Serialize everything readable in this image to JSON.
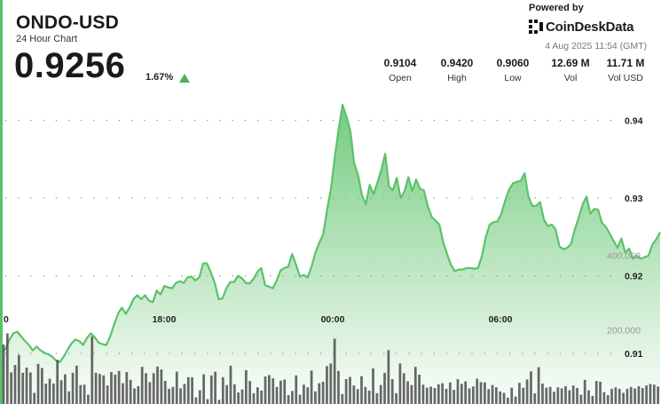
{
  "header": {
    "symbol": "ONDO-USD",
    "subtitle": "24 Hour Chart",
    "price": "0.9256",
    "change": "1.67%",
    "change_direction": "up"
  },
  "branding": {
    "powered_by": "Powered by",
    "name": "CoinDeskData",
    "icon": "coindesk-logo-icon"
  },
  "timestamp": "4 Aug 2025 11:54 (GMT)",
  "stats": [
    {
      "value": "0.9104",
      "label": "Open"
    },
    {
      "value": "0.9420",
      "label": "High"
    },
    {
      "value": "0.9060",
      "label": "Low"
    },
    {
      "value": "12.69 M",
      "label": "Vol"
    },
    {
      "value": "11.71 M",
      "label": "Vol USD"
    }
  ],
  "colors": {
    "line": "#5cc26a",
    "area_top": "#5cc26a",
    "volume_bar": "#4d4d4d",
    "up_arrow": "#4caf5a"
  },
  "chart_data": [
    {
      "type": "area",
      "x_ticks": [
        "0",
        "18:00",
        "00:00",
        "06:00"
      ],
      "y_ticks": [
        "0.94",
        "0.93",
        "0.92",
        "0.91"
      ],
      "ylim": [
        0.9035,
        0.9443
      ],
      "grid": "dotted-horizontal",
      "values": [
        0.9102,
        0.9106,
        0.9118,
        0.9126,
        0.9128,
        0.9122,
        0.9116,
        0.9111,
        0.9104,
        0.9109,
        0.9104,
        0.9101,
        0.9099,
        0.9096,
        0.9091,
        0.9089,
        0.9096,
        0.9105,
        0.9113,
        0.9118,
        0.9116,
        0.9111,
        0.912,
        0.9126,
        0.9121,
        0.9114,
        0.9112,
        0.9111,
        0.9122,
        0.9137,
        0.9151,
        0.9159,
        0.9151,
        0.9159,
        0.917,
        0.9175,
        0.917,
        0.9175,
        0.9168,
        0.9166,
        0.9181,
        0.9176,
        0.9187,
        0.9185,
        0.9184,
        0.9191,
        0.9193,
        0.9191,
        0.9198,
        0.9199,
        0.9194,
        0.9198,
        0.9216,
        0.9216,
        0.9204,
        0.9191,
        0.917,
        0.9171,
        0.9184,
        0.9192,
        0.9192,
        0.92,
        0.9197,
        0.9191,
        0.919,
        0.9196,
        0.9205,
        0.921,
        0.9188,
        0.9186,
        0.9184,
        0.9194,
        0.9207,
        0.921,
        0.9212,
        0.9228,
        0.9214,
        0.9199,
        0.9201,
        0.9198,
        0.9212,
        0.923,
        0.9243,
        0.9253,
        0.9285,
        0.9312,
        0.9353,
        0.9389,
        0.942,
        0.9405,
        0.9387,
        0.9345,
        0.933,
        0.9304,
        0.9292,
        0.9317,
        0.9305,
        0.932,
        0.9336,
        0.9357,
        0.9315,
        0.931,
        0.9326,
        0.93,
        0.9309,
        0.9327,
        0.9309,
        0.9324,
        0.9312,
        0.931,
        0.929,
        0.9276,
        0.9271,
        0.9266,
        0.9243,
        0.9228,
        0.9214,
        0.9206,
        0.9208,
        0.9208,
        0.921,
        0.921,
        0.9209,
        0.921,
        0.9226,
        0.925,
        0.9266,
        0.9269,
        0.927,
        0.928,
        0.9297,
        0.9311,
        0.9319,
        0.9321,
        0.9322,
        0.9332,
        0.9302,
        0.929,
        0.929,
        0.9295,
        0.9272,
        0.9264,
        0.9266,
        0.926,
        0.9238,
        0.9234,
        0.9236,
        0.9241,
        0.926,
        0.9275,
        0.9292,
        0.9302,
        0.928,
        0.9286,
        0.9285,
        0.9268,
        0.9263,
        0.9254,
        0.9245,
        0.9236,
        0.9248,
        0.923,
        0.9235,
        0.9222,
        0.9226,
        0.9222,
        0.9224,
        0.9226,
        0.924,
        0.9247,
        0.9256
      ]
    },
    {
      "type": "bar",
      "name": "Volume",
      "y_ticks": [
        "400,000",
        "200,000"
      ],
      "ylim": [
        0,
        490000
      ],
      "values": [
        160000,
        190000,
        85000,
        105000,
        132000,
        84000,
        98000,
        85000,
        30000,
        108000,
        97000,
        55000,
        68000,
        55000,
        119000,
        64000,
        80000,
        34000,
        84000,
        103000,
        51000,
        52000,
        25000,
        182000,
        84000,
        81000,
        77000,
        50000,
        86000,
        79000,
        89000,
        56000,
        86000,
        65000,
        42000,
        48000,
        100000,
        83000,
        59000,
        83000,
        101000,
        93000,
        62000,
        41000,
        46000,
        87000,
        42000,
        54000,
        72000,
        72000,
        18000,
        37000,
        80000,
        13000,
        77000,
        87000,
        11000,
        72000,
        51000,
        103000,
        53000,
        31000,
        39000,
        91000,
        62000,
        29000,
        45000,
        36000,
        74000,
        78000,
        69000,
        46000,
        63000,
        66000,
        24000,
        35000,
        77000,
        25000,
        52000,
        45000,
        90000,
        34000,
        56000,
        60000,
        102000,
        109000,
        176000,
        89000,
        27000,
        67000,
        73000,
        50000,
        40000,
        75000,
        46000,
        36000,
        96000,
        29000,
        51000,
        84000,
        145000,
        67000,
        29000,
        109000,
        83000,
        61000,
        51000,
        100000,
        79000,
        52000,
        44000,
        47000,
        43000,
        53000,
        56000,
        41000,
        58000,
        38000,
        67000,
        54000,
        61000,
        42000,
        47000,
        68000,
        59000,
        58000,
        40000,
        51000,
        45000,
        34000,
        30000,
        17000,
        44000,
        20000,
        57000,
        44000,
        66000,
        88000,
        29000,
        99000,
        55000,
        44000,
        46000,
        33000,
        45000,
        42000,
        48000,
        37000,
        50000,
        43000,
        25000,
        65000,
        37000,
        22000,
        62000,
        60000,
        32000,
        24000,
        41000,
        45000,
        41000,
        30000,
        41000,
        46000,
        42000,
        48000,
        43000,
        50000,
        54000,
        52000,
        47000
      ]
    }
  ]
}
